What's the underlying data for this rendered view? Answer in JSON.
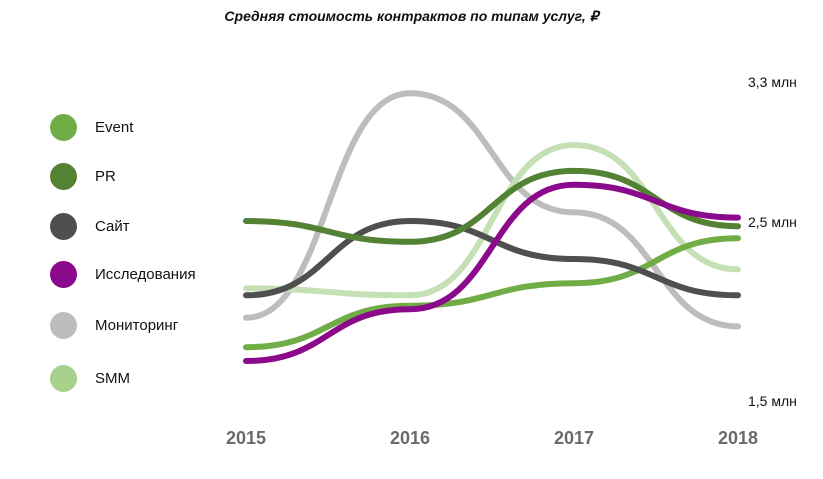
{
  "chart_data": {
    "type": "line",
    "title": "Средняя стоимость контрактов по типам услуг, ₽",
    "x": [
      "2015",
      "2016",
      "2017",
      "2018"
    ],
    "y_tick_labels": [
      "3,3 млн",
      "2,5 млн",
      "1,5 млн"
    ],
    "y_tick_values": [
      3.3,
      2.5,
      1.5
    ],
    "ylim": [
      1.5,
      3.3
    ],
    "grid": false,
    "legend_position": "left",
    "series": [
      {
        "name": "Event",
        "color": "#70ad47",
        "values": [
          1.8,
          2.04,
          2.17,
          2.43
        ]
      },
      {
        "name": "PR",
        "color": "#548235",
        "values": [
          2.53,
          2.41,
          2.82,
          2.5
        ]
      },
      {
        "name": "Сайт",
        "color": "#4f4f4f",
        "values": [
          2.1,
          2.53,
          2.31,
          2.1
        ]
      },
      {
        "name": "Исследования",
        "color": "#8b0a8b",
        "values": [
          1.72,
          2.02,
          2.74,
          2.55
        ]
      },
      {
        "name": "Мониторинг",
        "color": "#bdbdbd",
        "values": [
          1.97,
          3.27,
          2.58,
          1.92
        ]
      },
      {
        "name": "SMM",
        "color": "#c5e0b4",
        "values": [
          2.14,
          2.1,
          2.97,
          2.25
        ]
      }
    ]
  }
}
